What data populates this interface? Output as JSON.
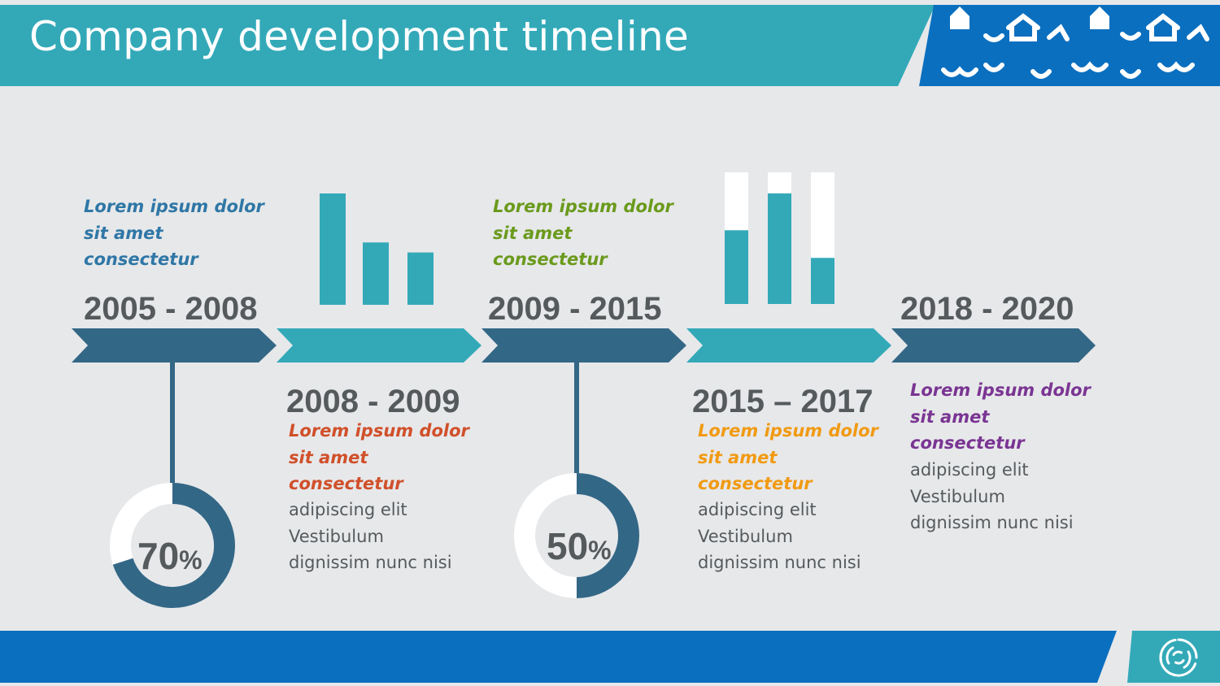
{
  "title": "Company development timeline",
  "colors": {
    "teal": "#33a9b8",
    "navy": "#336786",
    "blue": "#0b6fbf",
    "background": "#e7e8ea"
  },
  "periods": [
    {
      "label": "2005 - 2008",
      "lead": [
        "Lorem ipsum dolor",
        "sit amet",
        "consectetur"
      ],
      "lead_color": "#2f77a6",
      "body": [],
      "progress_percent": 70,
      "percent_label": "70",
      "percent_sign": "%"
    },
    {
      "label": "2008 - 2009",
      "lead": [
        "Lorem ipsum dolor",
        "sit amet",
        "consectetur"
      ],
      "lead_color": "#d0502a",
      "body": [
        "adipiscing elit",
        "Vestibulum",
        "dignissim nunc nisi"
      ]
    },
    {
      "label": "2009 - 2015",
      "lead": [
        "Lorem ipsum dolor",
        "sit amet",
        "consectetur"
      ],
      "lead_color": "#6a9a1c",
      "body": [],
      "progress_percent": 50,
      "percent_label": "50",
      "percent_sign": "%"
    },
    {
      "label": "2015 – 2017",
      "lead": [
        "Lorem ipsum dolor",
        "sit amet",
        "consectetur"
      ],
      "lead_color": "#f19a12",
      "body": [
        "adipiscing elit",
        "Vestibulum",
        "dignissim nunc nisi"
      ]
    },
    {
      "label": "2018 - 2020",
      "lead": [
        "Lorem ipsum dolor",
        "sit amet",
        "consectetur"
      ],
      "lead_color": "#7a3593",
      "body": [
        "adipiscing elit",
        "Vestibulum",
        "dignissim nunc nisi"
      ]
    }
  ],
  "mini_bars_1": {
    "values": [
      1.0,
      0.56,
      0.47
    ]
  },
  "mini_bars_2": {
    "filled": [
      0.56,
      0.84,
      0.35
    ]
  },
  "decor_icons": [
    "house-icon",
    "bird-icon",
    "wave-icon",
    "swirl-logo-icon"
  ]
}
